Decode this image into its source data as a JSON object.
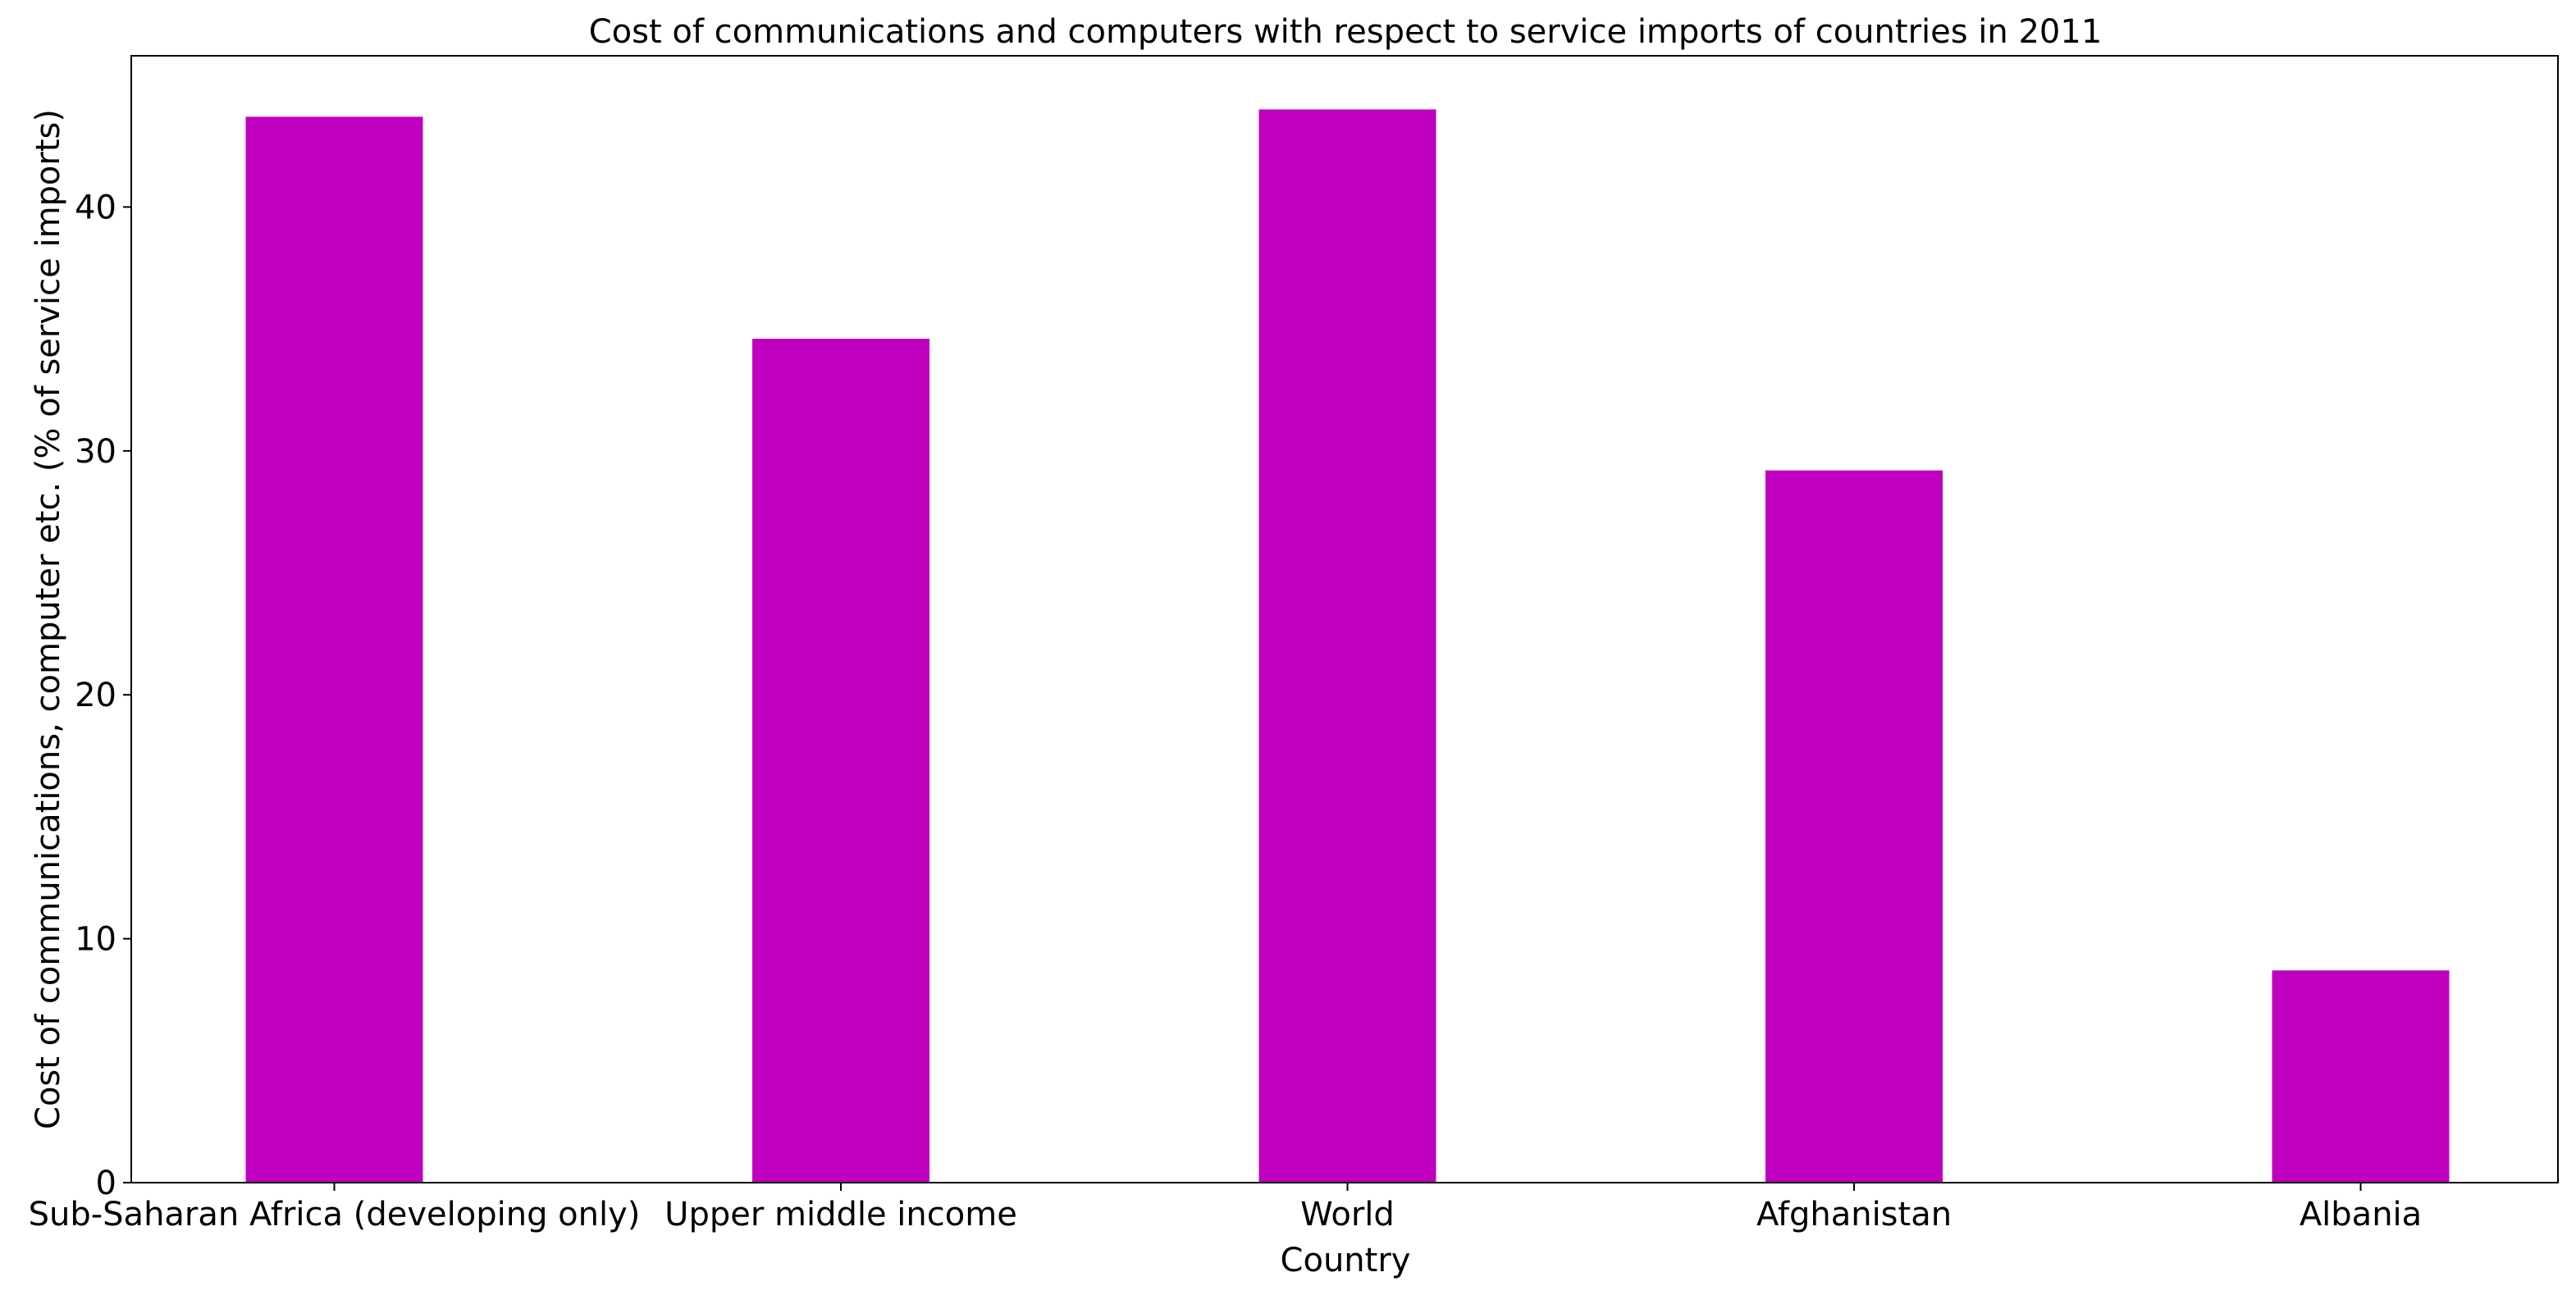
{
  "chart_data": {
    "type": "bar",
    "title": "Cost of communications and computers with respect to service imports of countries in 2011",
    "xlabel": "Country",
    "ylabel": "Cost of communications, computer etc. (% of service imports)",
    "categories": [
      "Sub-Saharan Africa (developing only)",
      "Upper middle income",
      "World",
      "Afghanistan",
      "Albania"
    ],
    "values": [
      43.7,
      34.6,
      44.0,
      29.2,
      8.7
    ],
    "ylim": [
      0,
      46.2
    ],
    "yticks": [
      0,
      10,
      20,
      30,
      40
    ],
    "grid": false,
    "colors": {
      "bar": "#bf00bf"
    }
  }
}
